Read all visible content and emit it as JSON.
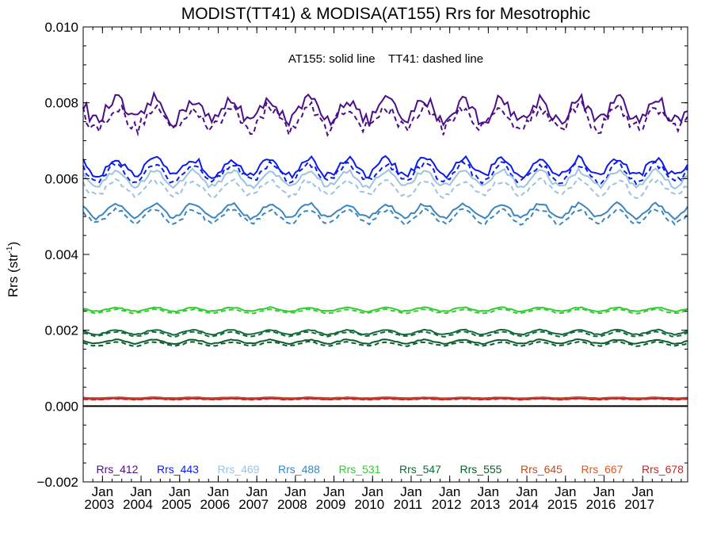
{
  "chart_data": {
    "type": "line",
    "title": "MODIST(TT41) & MODISA(AT155)  Rrs for Mesotrophic",
    "ylabel_main": "Rrs (str",
    "ylabel_sup": "-1",
    "ylabel_close": ")",
    "annotation": "AT155: solid line    TT41: dashed line",
    "ylim": [
      -0.002,
      0.01
    ],
    "xlim": [
      "2002-07",
      "2018-03"
    ],
    "yticks": [
      "0.010",
      "0.008",
      "0.006",
      "0.004",
      "0.002",
      "0.000",
      "−0.002"
    ],
    "ytick_values": [
      0.01,
      0.008,
      0.006,
      0.004,
      0.002,
      0.0,
      -0.002
    ],
    "xtick_month": "Jan",
    "xtick_years": [
      "2003",
      "2004",
      "2005",
      "2006",
      "2007",
      "2008",
      "2009",
      "2010",
      "2011",
      "2012",
      "2013",
      "2014",
      "2015",
      "2016",
      "2017"
    ],
    "grid": false,
    "zero_line": true,
    "legend_position": "bottom",
    "series": [
      {
        "name": "Rrs_412",
        "color": "#4b0f87",
        "base": 0.0078,
        "amp": 0.00028,
        "noise": 0.00035,
        "dash_offset": -0.0002
      },
      {
        "name": "Rrs_443",
        "color": "#0b1de6",
        "base": 0.0063,
        "amp": 0.00022,
        "noise": 0.00018,
        "dash_offset": -0.00015
      },
      {
        "name": "Rrs_469",
        "color": "#9bc4e0",
        "base": 0.006,
        "amp": 0.0002,
        "noise": 0.00014,
        "dash_offset": -0.00025
      },
      {
        "name": "Rrs_488",
        "color": "#3b86c0",
        "base": 0.00515,
        "amp": 0.00018,
        "noise": 0.0001,
        "dash_offset": -0.00015
      },
      {
        "name": "Rrs_531",
        "color": "#33cc33",
        "base": 0.00255,
        "amp": 5e-05,
        "noise": 3e-05,
        "dash_offset": -5e-05
      },
      {
        "name": "Rrs_547",
        "color": "#106b38",
        "base": 0.00195,
        "amp": 6e-05,
        "noise": 3e-05,
        "dash_offset": -5e-05
      },
      {
        "name": "Rrs_555",
        "color": "#0b5e2c",
        "base": 0.0017,
        "amp": 5e-05,
        "noise": 3e-05,
        "dash_offset": -6e-05
      },
      {
        "name": "Rrs_645",
        "color": "#b8502a",
        "base": 0.00022,
        "amp": 1e-05,
        "noise": 1e-05,
        "dash_offset": -1e-05
      },
      {
        "name": "Rrs_667",
        "color": "#e0561c",
        "base": 0.0002,
        "amp": 1e-05,
        "noise": 1e-05,
        "dash_offset": -1e-05
      },
      {
        "name": "Rrs_678",
        "color": "#c1272d",
        "base": 0.00019,
        "amp": 1e-05,
        "noise": 1e-05,
        "dash_offset": -1e-05
      }
    ]
  }
}
